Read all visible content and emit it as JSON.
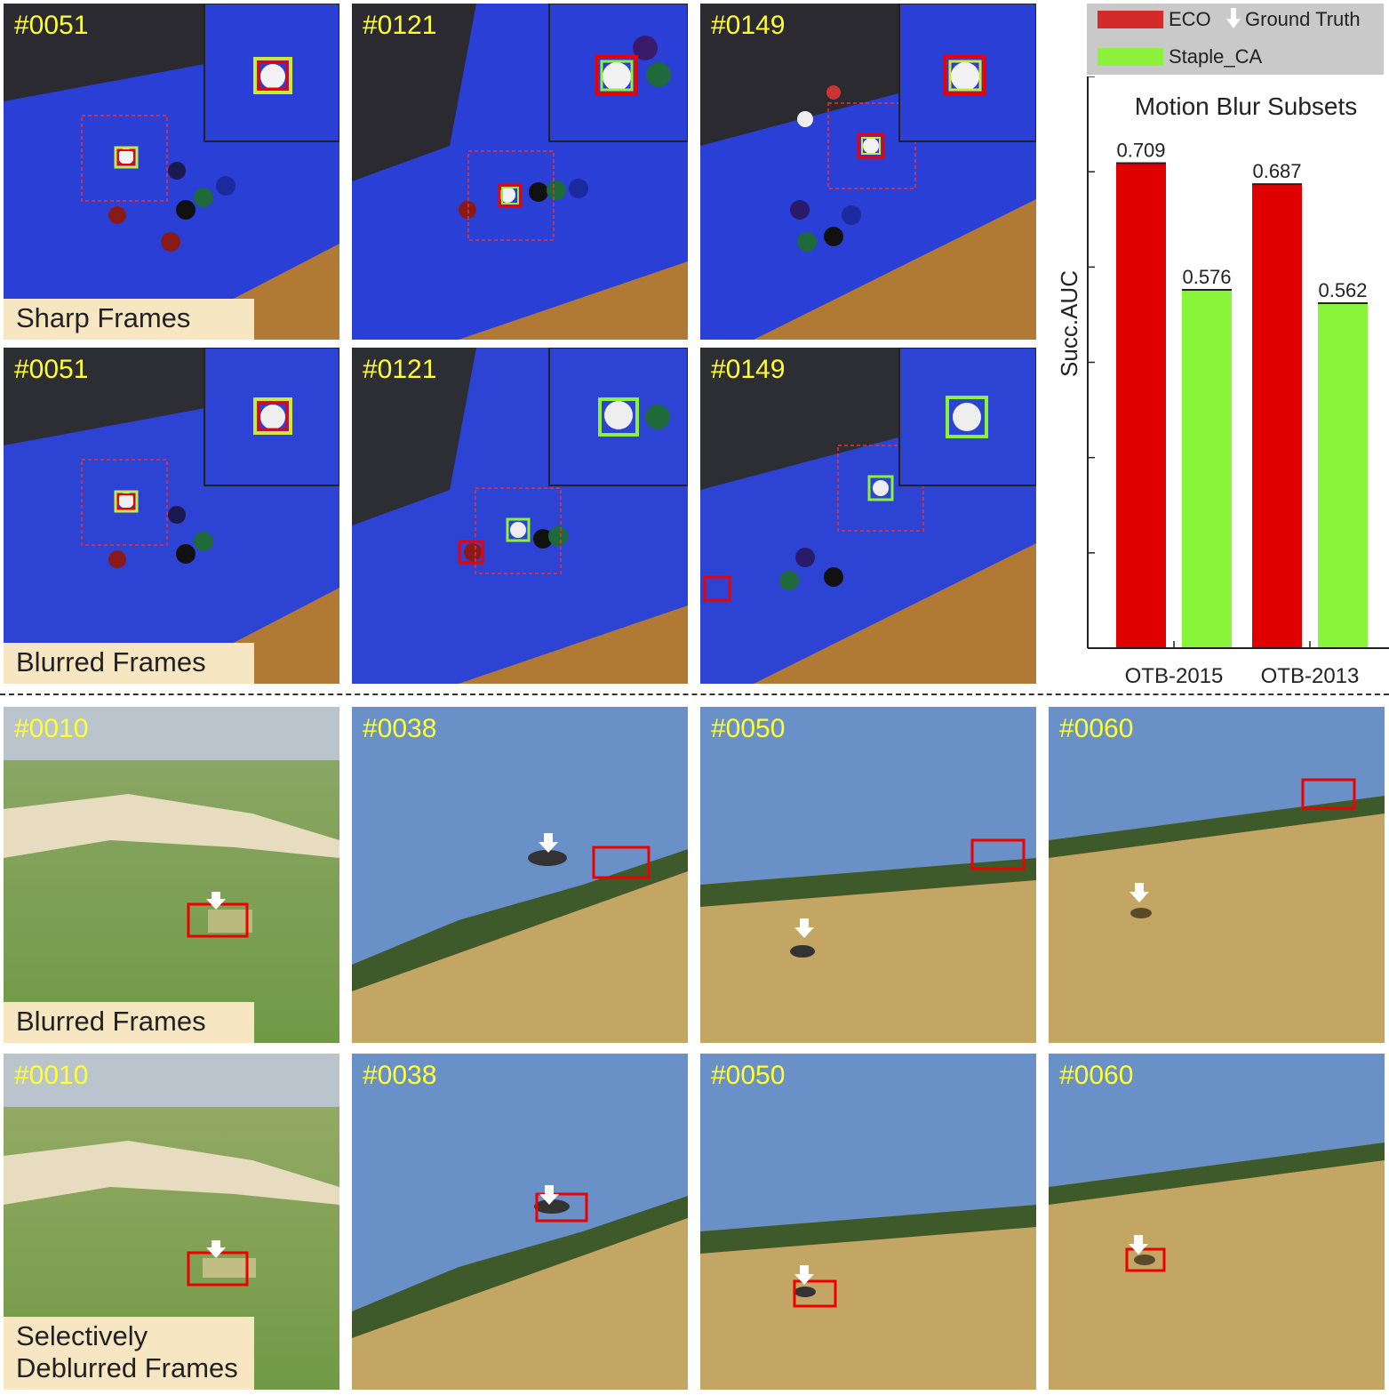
{
  "top_rows": [
    {
      "caption": "Sharp Frames",
      "frames": [
        "#0051",
        "#0121",
        "#0149"
      ]
    },
    {
      "caption": "Blurred Frames",
      "frames": [
        "#0051",
        "#0121",
        "#0149"
      ]
    }
  ],
  "bottom_rows": [
    {
      "caption": "Blurred Frames",
      "frames": [
        "#0010",
        "#0038",
        "#0050",
        "#0060"
      ]
    },
    {
      "caption": "Selectively\nDeblurred Frames",
      "frames": [
        "#0010",
        "#0038",
        "#0050",
        "#0060"
      ]
    }
  ],
  "legend": {
    "items": [
      {
        "label": "ECO",
        "color": "#d42a2a"
      },
      {
        "label": "Ground Truth",
        "icon": "down-arrow-icon",
        "color": "#ffffff"
      },
      {
        "label": "Staple_CA",
        "color": "#8cf03c"
      }
    ]
  },
  "colors": {
    "eco": "#e00000",
    "staple_ca": "#88f53a",
    "frame_label": "#ffff33",
    "caption_bg": "#f7e6c2"
  },
  "chart_data": {
    "type": "bar",
    "title": "Motion Blur Subsets",
    "ylabel": "Succ.AUC",
    "xlabel": "",
    "categories": [
      "OTB-2015",
      "OTB-2013"
    ],
    "series": [
      {
        "name": "ECO",
        "values": [
          0.709,
          0.687
        ]
      },
      {
        "name": "Staple_CA",
        "values": [
          0.576,
          0.562
        ]
      }
    ],
    "value_labels": [
      "0.709",
      "0.576",
      "0.687",
      "0.562"
    ],
    "ylim": [
      0.2,
      0.8
    ],
    "grid": false,
    "legend": "top"
  }
}
